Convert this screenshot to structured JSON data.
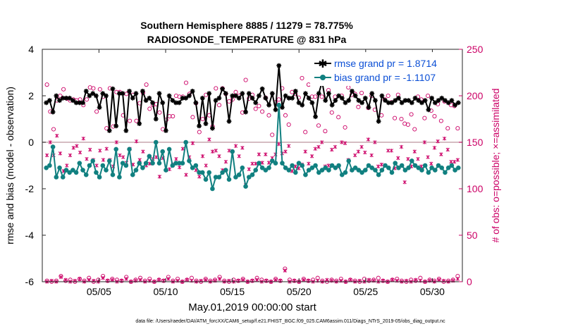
{
  "chart_data": {
    "type": "line",
    "title_line1": "Southern Hemisphere 8885 / 11279 = 78.775%",
    "title_line2": "RADIOSONDE_TEMPERATURE @ 831 hPa",
    "ylabel": "rmse and bias (model - observation)",
    "ylabel_right": "# of obs: o=possible; ×=assimilated",
    "xlabel": "May.01,2019 00:00:00 start",
    "footnote": "data file: /Users/raeder/DAI/ATM_forcXX/CAM6_setup/f.e21.FHIST_BGC.f09_025.CAM6assim.011/Diags_NTrS_2019-05/obs_diag_output.nc",
    "xlim": [
      0.75,
      32.25
    ],
    "ylim": [
      -6,
      4
    ],
    "ylim_right": [
      0,
      250
    ],
    "yticks": [
      -6,
      -4,
      -2,
      0,
      2,
      4
    ],
    "yticks_right": [
      0,
      50,
      100,
      150,
      200,
      250
    ],
    "xticks": [
      {
        "x": 5,
        "label": "05/05"
      },
      {
        "x": 10,
        "label": "05/10"
      },
      {
        "x": 15,
        "label": "05/15"
      },
      {
        "x": 20,
        "label": "05/20"
      },
      {
        "x": 25,
        "label": "05/25"
      },
      {
        "x": 30,
        "label": "05/30"
      }
    ],
    "zero_line": 0,
    "series": [
      {
        "name": "rmse grand pr = 1.8714",
        "color": "#000000",
        "marker": "star",
        "values": [
          1.7,
          1.8,
          1.3,
          2.0,
          1.8,
          1.9,
          1.9,
          1.9,
          1.8,
          1.7,
          1.7,
          1.7,
          2.2,
          2.0,
          2.1,
          2.0,
          1.5,
          2.1,
          2.0,
          0.5,
          2.3,
          0.7,
          2.1,
          2.1,
          0.5,
          2.2,
          1.9,
          2.1,
          0.8,
          2.2,
          1.8,
          1.9,
          1.7,
          1.0,
          2.1,
          1.7,
          0.5,
          2.0,
          1.8,
          1.7,
          1.7,
          1.9,
          1.9,
          2.0,
          2.2,
          1.7,
          0.7,
          1.9,
          0.8,
          2.1,
          0.6,
          1.8,
          1.9,
          2.3,
          2.1,
          0.9,
          2.0,
          2.0,
          1.9,
          2.1,
          1.3,
          2.1,
          1.9,
          1.7,
          2.0,
          2.3,
          1.9,
          1.6,
          2.1,
          1.4,
          3.3,
          1.5,
          2.0,
          1.9,
          1.9,
          2.2,
          1.7,
          1.6,
          2.1,
          1.9,
          1.7,
          1.1,
          2.1,
          2.6,
          1.8,
          2.1,
          1.6,
          1.8,
          2.0,
          1.9,
          1.7,
          1.8,
          2.2,
          2.0,
          1.8,
          1.7,
          1.9,
          1.5,
          2.1,
          1.8,
          0.9,
          2.0,
          1.8,
          1.7,
          1.7,
          1.8,
          1.9,
          1.7,
          1.8,
          1.8,
          1.7,
          1.9,
          1.8,
          1.7,
          1.8,
          1.4,
          1.9,
          1.7,
          1.8,
          1.9,
          1.8,
          1.7,
          1.8,
          1.6,
          1.7
        ]
      },
      {
        "name": "bias grand pr = -1.1107",
        "color": "#118080",
        "marker": "circle",
        "values": [
          -1.1,
          -1.0,
          -0.2,
          -1.5,
          -1.1,
          -1.5,
          -1.2,
          -1.3,
          -1.2,
          -1.3,
          -0.9,
          -1.2,
          -1.4,
          -1.0,
          -0.8,
          -1.3,
          -1.5,
          -1.0,
          -1.2,
          -0.8,
          -1.4,
          -0.3,
          -1.5,
          -0.9,
          -1.0,
          -0.3,
          -1.4,
          -1.2,
          -0.9,
          -1.1,
          -0.9,
          -0.6,
          -0.9,
          0.0,
          -0.9,
          -0.4,
          -1.2,
          -0.3,
          -1.0,
          -0.9,
          -0.9,
          -0.9,
          0.0,
          -0.8,
          -1.1,
          -1.0,
          -1.3,
          -1.3,
          -1.6,
          -1.3,
          -2.0,
          -1.5,
          -1.5,
          -1.3,
          -1.2,
          -1.6,
          -0.4,
          -1.5,
          -1.4,
          -1.1,
          -1.9,
          -1.5,
          -1.4,
          -1.2,
          -0.9,
          -1.1,
          -1.2,
          -1.1,
          -0.8,
          -0.9,
          1.6,
          -0.9,
          -1.1,
          -1.2,
          -1.0,
          -1.3,
          -0.9,
          -1.0,
          -1.4,
          -1.2,
          -1.1,
          -1.0,
          -1.3,
          -1.2,
          -1.1,
          -1.2,
          -1.0,
          -1.1,
          -1.0,
          -1.4,
          -1.3,
          -0.8,
          -1.2,
          -1.1,
          -1.2,
          -1.3,
          -1.2,
          -1.0,
          -1.1,
          -1.2,
          -1.4,
          -1.2,
          -1.0,
          -1.1,
          -1.3,
          -0.9,
          -1.1,
          -1.0,
          -1.2,
          -1.1,
          -0.8,
          -1.0,
          -1.1,
          -1.2,
          -1.0,
          -1.3,
          -1.1,
          -1.2,
          -1.0,
          -1.1,
          -1.3,
          -1.1,
          -1.0,
          -1.2,
          -1.1
        ]
      }
    ],
    "obs_possible_values": [
      212,
      183,
      164,
      195,
      200,
      207,
      197,
      195,
      196,
      195,
      196,
      190,
      196,
      209,
      208,
      183,
      207,
      199,
      165,
      208,
      167,
      204,
      204,
      179,
      202,
      173,
      201,
      173,
      192,
      203,
      212,
      186,
      190,
      191,
      182,
      164,
      174,
      178,
      178,
      200,
      199,
      199,
      214,
      202,
      177,
      192,
      161,
      175,
      201,
      179,
      167,
      208,
      190,
      208,
      202,
      194,
      196,
      204,
      200,
      182,
      217,
      197,
      201,
      186,
      189,
      183,
      198,
      179,
      158,
      193,
      196,
      208,
      179,
      169,
      204,
      202,
      198,
      219,
      161,
      212,
      199,
      199,
      168,
      199,
      162,
      206,
      182,
      199,
      177,
      200,
      166,
      209,
      201,
      202,
      188,
      203,
      214,
      187,
      200,
      185,
      213,
      179,
      196,
      200,
      193,
      176,
      201,
      175,
      170,
      169,
      180,
      164,
      199,
      196,
      176,
      200,
      184,
      178,
      191,
      173,
      194,
      165,
      190,
      189,
      165
    ],
    "obs_assimilated_values": [
      136,
      150,
      136,
      157,
      138,
      119,
      125,
      136,
      144,
      146,
      139,
      154,
      132,
      142,
      131,
      125,
      141,
      131,
      143,
      131,
      124,
      150,
      136,
      134,
      128,
      143,
      126,
      151,
      131,
      140,
      125,
      127,
      132,
      134,
      113,
      133,
      120,
      121,
      126,
      132,
      123,
      143,
      115,
      134,
      149,
      120,
      113,
      135,
      125,
      153,
      140,
      141,
      135,
      120,
      129,
      141,
      140,
      146,
      135,
      144,
      104,
      121,
      127,
      127,
      137,
      128,
      137,
      128,
      133,
      137,
      148,
      138,
      140,
      146,
      119,
      124,
      122,
      126,
      140,
      127,
      135,
      143,
      145,
      150,
      124,
      125,
      142,
      145,
      124,
      150,
      149,
      131,
      120,
      136,
      140,
      145,
      139,
      153,
      136,
      150,
      124,
      126,
      125,
      141,
      141,
      122,
      133,
      145,
      107,
      132,
      124,
      140,
      132,
      124,
      150,
      134,
      127,
      144,
      151,
      137,
      154,
      142,
      129,
      129,
      131
    ],
    "obs_low_possible": [
      1,
      0,
      1,
      6,
      1,
      2,
      0,
      3,
      1,
      4,
      0,
      2,
      6,
      1,
      3,
      2,
      1,
      5,
      0,
      2,
      4,
      1,
      3,
      0,
      2,
      1,
      5,
      1,
      3,
      0,
      2,
      4,
      1,
      0,
      3,
      1,
      2,
      5,
      1,
      0,
      2,
      1,
      3,
      0,
      1,
      4,
      2,
      1,
      0,
      3,
      1,
      14,
      2,
      1,
      0,
      3,
      1,
      2,
      4,
      1,
      0,
      2,
      1,
      3,
      0,
      2,
      1,
      0,
      3,
      1,
      2,
      4,
      1,
      0,
      2,
      3,
      1,
      0,
      2,
      1,
      4,
      0,
      2,
      1,
      3,
      0,
      1,
      2,
      6
    ],
    "obs_low_assimilated": [
      0,
      1,
      0,
      5,
      2,
      0,
      1,
      3,
      0,
      2,
      1,
      0,
      4,
      1,
      2,
      0,
      1,
      3,
      0,
      1,
      2,
      0,
      1,
      0,
      2,
      1,
      3,
      0,
      1,
      0,
      2,
      1,
      0,
      1,
      2,
      0,
      1,
      3,
      0,
      1,
      0,
      1,
      2,
      0,
      1,
      2,
      0,
      1,
      0,
      2,
      1,
      12,
      0,
      1,
      0,
      2,
      1,
      0,
      1,
      0,
      2,
      1,
      0,
      1,
      0,
      2,
      0,
      1,
      0,
      2,
      1,
      0,
      1,
      0,
      2,
      1,
      0,
      1,
      0,
      2,
      1,
      0,
      1,
      0,
      2,
      1,
      0,
      1,
      3
    ]
  }
}
